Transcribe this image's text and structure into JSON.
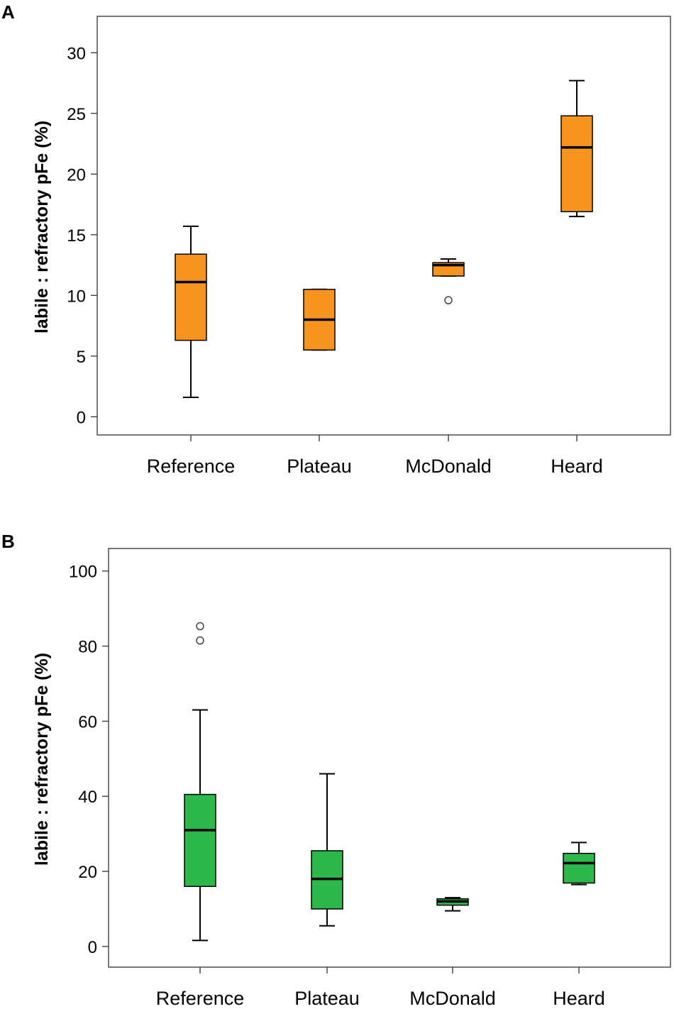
{
  "chart_data": [
    {
      "type": "boxplot",
      "panel": "A",
      "ylabel": "labile : refractory pFe (%)",
      "ylim": [
        -1.5,
        33
      ],
      "yticks": [
        "0",
        "5",
        "10",
        "15",
        "20",
        "25",
        "30"
      ],
      "categories": [
        "Reference",
        "Plateau",
        "McDonald",
        "Heard"
      ],
      "fill": "#F7941D",
      "boxes": [
        {
          "min": 1.6,
          "q1": 6.3,
          "median": 11.1,
          "q3": 13.4,
          "max": 15.7,
          "outliers": []
        },
        {
          "min": 5.5,
          "q1": 5.5,
          "median": 8.0,
          "q3": 10.5,
          "max": 10.5,
          "outliers": []
        },
        {
          "min": 11.6,
          "q1": 11.6,
          "median": 12.5,
          "q3": 12.7,
          "max": 13.0,
          "outliers": [
            9.6
          ]
        },
        {
          "min": 16.5,
          "q1": 16.9,
          "median": 22.2,
          "q3": 24.8,
          "max": 27.7,
          "outliers": []
        }
      ]
    },
    {
      "type": "boxplot",
      "panel": "B",
      "ylabel": "labile : refractory pFe (%)",
      "ylim": [
        -5.5,
        106
      ],
      "yticks": [
        "0",
        "20",
        "40",
        "60",
        "80",
        "100"
      ],
      "categories": [
        "Reference",
        "Plateau",
        "McDonald",
        "Heard"
      ],
      "fill": "#2DB84B",
      "boxes": [
        {
          "min": 1.6,
          "q1": 16.0,
          "median": 31.0,
          "q3": 40.5,
          "max": 63.0,
          "outliers": [
            81.5,
            85.3
          ]
        },
        {
          "min": 5.5,
          "q1": 10.0,
          "median": 18.0,
          "q3": 25.5,
          "max": 46.0,
          "outliers": []
        },
        {
          "min": 9.5,
          "q1": 11.0,
          "median": 12.0,
          "q3": 12.7,
          "max": 13.0,
          "outliers": []
        },
        {
          "min": 16.5,
          "q1": 16.9,
          "median": 22.2,
          "q3": 24.8,
          "max": 27.7,
          "outliers": []
        }
      ]
    }
  ]
}
